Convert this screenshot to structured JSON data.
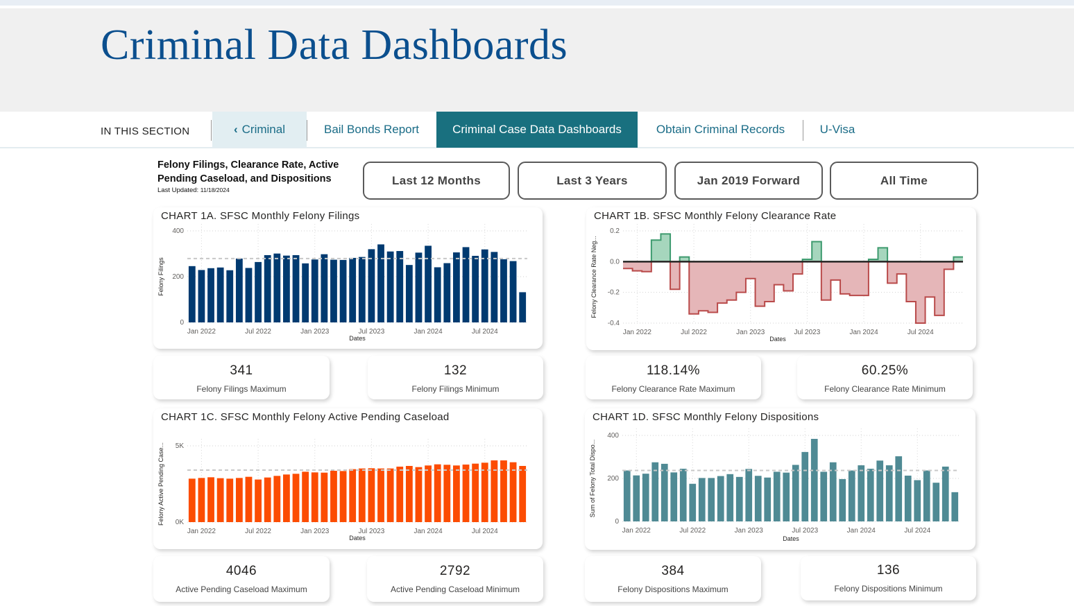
{
  "site_title": "Criminal Data Dashboards",
  "nav": {
    "section_label": "IN THIS SECTION",
    "back_label": "Criminal",
    "tabs": [
      "Bail Bonds Report",
      "Criminal Case Data Dashboards",
      "Obtain Criminal Records",
      "U-Visa"
    ],
    "active_tab": "Criminal Case Data Dashboards"
  },
  "report": {
    "title_line1": "Felony Filings, Clearance Rate, Active",
    "title_line2": "Pending Caseload, and Dispositions",
    "last_updated_label": "Last Updated:",
    "last_updated": "11/18/2024"
  },
  "filters": [
    "Last 12 Months",
    "Last 3 Years",
    "Jan 2019 Forward",
    "All Time"
  ],
  "kpis": {
    "filings_max": {
      "value": "341",
      "label": "Felony Filings Maximum"
    },
    "filings_min": {
      "value": "132",
      "label": "Felony Filings Minimum"
    },
    "clearance_max": {
      "value": "118.14%",
      "label": "Felony Clearance Rate Maximum"
    },
    "clearance_min": {
      "value": "60.25%",
      "label": "Felony Clearance Rate Minimum"
    },
    "pending_max": {
      "value": "4046",
      "label": "Active Pending Caseload Maximum"
    },
    "pending_min": {
      "value": "2792",
      "label": "Active Pending Caseload Minimum"
    },
    "dispo_max": {
      "value": "384",
      "label": "Felony Dispositions Maximum"
    },
    "dispo_min": {
      "value": "136",
      "label": "Felony Dispositions Minimum"
    }
  },
  "chart_data": [
    {
      "id": "1a",
      "type": "bar",
      "title": "CHART 1A. SFSC Monthly Felony Filings",
      "xlabel": "Dates",
      "ylabel": "Felony Filings",
      "ylim": [
        0,
        400
      ],
      "yticks": [
        {
          "v": 0,
          "label": "0"
        },
        {
          "v": 200,
          "label": "200"
        },
        {
          "v": 400,
          "label": "400"
        }
      ],
      "xticks": [
        {
          "i": 1,
          "label": "Jan 2022"
        },
        {
          "i": 7,
          "label": "Jul 2022"
        },
        {
          "i": 13,
          "label": "Jan 2023"
        },
        {
          "i": 19,
          "label": "Jul 2023"
        },
        {
          "i": 25,
          "label": "Jan 2024"
        },
        {
          "i": 31,
          "label": "Jul 2024"
        }
      ],
      "color": "#003a70",
      "reference_line": 279,
      "grid": true,
      "values": [
        246,
        229,
        237,
        240,
        228,
        279,
        238,
        264,
        294,
        301,
        292,
        294,
        258,
        275,
        298,
        274,
        273,
        282,
        286,
        320,
        341,
        310,
        312,
        251,
        305,
        335,
        241,
        259,
        306,
        329,
        291,
        319,
        308,
        276,
        268,
        132
      ]
    },
    {
      "id": "1b",
      "type": "step-area",
      "title": "CHART 1B. SFSC Monthly Felony Clearance Rate",
      "xlabel": "Dates",
      "ylabel": "Felony Clearance Rate Neg...",
      "ylim": [
        -0.4,
        0.2
      ],
      "yticks": [
        {
          "v": -0.4,
          "label": "-0.4"
        },
        {
          "v": -0.2,
          "label": "-0.2"
        },
        {
          "v": 0,
          "label": "0.0"
        },
        {
          "v": 0.2,
          "label": "0.2"
        }
      ],
      "xticks": [
        {
          "i": 1,
          "label": "Jan 2022"
        },
        {
          "i": 7,
          "label": "Jul 2022"
        },
        {
          "i": 13,
          "label": "Jan 2023"
        },
        {
          "i": 19,
          "label": "Jul 2023"
        },
        {
          "i": 25,
          "label": "Jan 2024"
        },
        {
          "i": 31,
          "label": "Jul 2024"
        }
      ],
      "positive_color": "#3d9a6e",
      "negative_color": "#b94a4a",
      "grid": true,
      "values": [
        -0.045,
        -0.06,
        -0.065,
        0.14,
        0.18,
        -0.18,
        0.03,
        -0.34,
        -0.32,
        -0.33,
        -0.27,
        -0.25,
        -0.2,
        -0.11,
        -0.29,
        -0.26,
        -0.15,
        -0.19,
        -0.08,
        0.015,
        0.13,
        -0.25,
        -0.12,
        -0.21,
        -0.22,
        -0.22,
        0.015,
        0.09,
        -0.14,
        -0.08,
        -0.26,
        -0.4,
        -0.23,
        -0.35,
        -0.05,
        0.03
      ]
    },
    {
      "id": "1c",
      "type": "bar",
      "title": "CHART 1C. SFSC Monthly Felony Active Pending Caseload",
      "xlabel": "Dates",
      "ylabel": "Felony Active Pending Case...",
      "ylim": [
        0,
        5000
      ],
      "yticks": [
        {
          "v": 0,
          "label": "0K"
        },
        {
          "v": 5000,
          "label": "5K"
        }
      ],
      "xticks": [
        {
          "i": 1,
          "label": "Jan 2022"
        },
        {
          "i": 7,
          "label": "Jul 2022"
        },
        {
          "i": 13,
          "label": "Jan 2023"
        },
        {
          "i": 19,
          "label": "Jul 2023"
        },
        {
          "i": 25,
          "label": "Jan 2024"
        },
        {
          "i": 31,
          "label": "Jul 2024"
        }
      ],
      "color": "#fc4c02",
      "reference_line": 3409,
      "grid": true,
      "values": [
        2848,
        2894,
        2939,
        2879,
        2848,
        2894,
        2970,
        2792,
        2924,
        3030,
        3121,
        3167,
        3303,
        3258,
        3242,
        3364,
        3348,
        3470,
        3515,
        3530,
        3515,
        3515,
        3636,
        3682,
        3606,
        3712,
        3788,
        3758,
        3712,
        3773,
        3833,
        3894,
        4046,
        4045,
        3924,
        3682
      ]
    },
    {
      "id": "1d",
      "type": "bar",
      "title": "CHART 1D. SFSC Monthly Felony Dispositions",
      "xlabel": "Dates",
      "ylabel": "Sum of Felony Total Dispo...",
      "ylim": [
        0,
        400
      ],
      "yticks": [
        {
          "v": 0,
          "label": "0"
        },
        {
          "v": 200,
          "label": "200"
        },
        {
          "v": 400,
          "label": "400"
        }
      ],
      "xticks": [
        {
          "i": 1,
          "label": "Jan 2022"
        },
        {
          "i": 7,
          "label": "Jul 2022"
        },
        {
          "i": 13,
          "label": "Jan 2023"
        },
        {
          "i": 19,
          "label": "Jul 2023"
        },
        {
          "i": 25,
          "label": "Jan 2024"
        },
        {
          "i": 31,
          "label": "Jul 2024"
        }
      ],
      "color": "#4f8a94",
      "reference_line": 237,
      "grid": true,
      "values": [
        237,
        214,
        222,
        275,
        268,
        228,
        245,
        175,
        202,
        202,
        211,
        220,
        207,
        244,
        212,
        204,
        231,
        227,
        263,
        323,
        384,
        231,
        275,
        197,
        237,
        261,
        245,
        283,
        261,
        303,
        213,
        192,
        237,
        180,
        255,
        136
      ]
    }
  ]
}
